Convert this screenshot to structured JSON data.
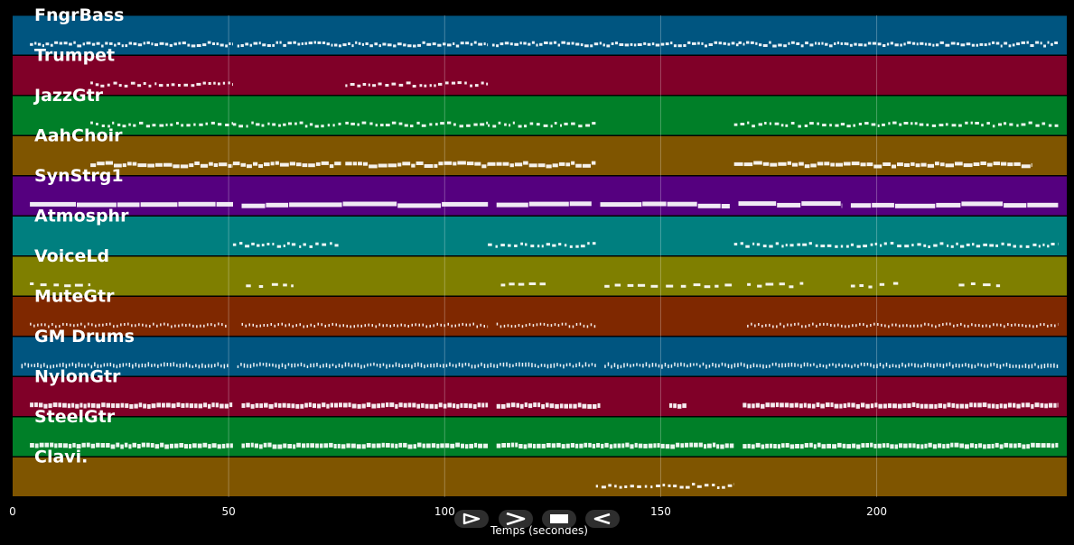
{
  "chart_data": {
    "type": "piano-roll",
    "xlabel": "Temps (secondes)",
    "xlim": [
      0,
      244
    ],
    "xticks": [
      0,
      50,
      100,
      150,
      200
    ],
    "grid": true,
    "tracks": [
      {
        "name": "FngrBass",
        "color": "#005580",
        "segments": [
          [
            4,
            51
          ],
          [
            52,
            110
          ],
          [
            111,
            168
          ],
          [
            168,
            193
          ],
          [
            193,
            242
          ]
        ],
        "style": "dotted-dense"
      },
      {
        "name": "Trumpet",
        "color": "#800028",
        "segments": [
          [
            18,
            51
          ],
          [
            77,
            110
          ]
        ],
        "style": "dotted"
      },
      {
        "name": "JazzGtr",
        "color": "#007f28",
        "segments": [
          [
            18,
            51
          ],
          [
            51,
            76
          ],
          [
            77,
            110
          ],
          [
            110,
            135
          ],
          [
            167,
            242
          ]
        ],
        "style": "dotted"
      },
      {
        "name": "AahChoir",
        "color": "#7f5500",
        "segments": [
          [
            18,
            51
          ],
          [
            51,
            76
          ],
          [
            77,
            110
          ],
          [
            110,
            135
          ],
          [
            167,
            236
          ]
        ],
        "style": "bars"
      },
      {
        "name": "SynStrg1",
        "color": "#55007f",
        "segments": [
          [
            4,
            51
          ],
          [
            53,
            110
          ],
          [
            112,
            134
          ],
          [
            136,
            166
          ],
          [
            168,
            192
          ],
          [
            194,
            242
          ]
        ],
        "style": "solid"
      },
      {
        "name": "Atmosphr",
        "color": "#007f7f",
        "segments": [
          [
            51,
            76
          ],
          [
            110,
            135
          ],
          [
            167,
            242
          ]
        ],
        "style": "dotted"
      },
      {
        "name": "VoiceLd",
        "color": "#7f7f00",
        "segments": [
          [
            4,
            18
          ],
          [
            54,
            65
          ],
          [
            113,
            124
          ],
          [
            137,
            167
          ],
          [
            170,
            183
          ],
          [
            194,
            205
          ],
          [
            219,
            230
          ]
        ],
        "style": "dashed"
      },
      {
        "name": "MuteGtr",
        "color": "#7f2800",
        "segments": [
          [
            4,
            50
          ],
          [
            53,
            110
          ],
          [
            112,
            135
          ],
          [
            170,
            242
          ]
        ],
        "style": "ticks"
      },
      {
        "name": "GM Drums",
        "color": "#005580",
        "segments": [
          [
            2,
            50
          ],
          [
            52,
            135
          ],
          [
            137,
            242
          ]
        ],
        "style": "ticks-dense"
      },
      {
        "name": "NylonGtr",
        "color": "#800028",
        "segments": [
          [
            4,
            51
          ],
          [
            53,
            110
          ],
          [
            112,
            136
          ],
          [
            152,
            156
          ],
          [
            169,
            242
          ]
        ],
        "style": "blocks"
      },
      {
        "name": "SteelGtr",
        "color": "#007f28",
        "segments": [
          [
            4,
            51
          ],
          [
            53,
            110
          ],
          [
            112,
            167
          ],
          [
            169,
            242
          ]
        ],
        "style": "blocks"
      },
      {
        "name": "Clavi.",
        "color": "#7f5500",
        "segments": [
          [
            135,
            167
          ]
        ],
        "style": "dotted"
      }
    ]
  },
  "controls": {
    "play_icon": "play-outline-icon",
    "forward_icon": "chevron-right-icon",
    "stop_icon": "stop-icon",
    "rewind_icon": "play-reverse-icon"
  }
}
